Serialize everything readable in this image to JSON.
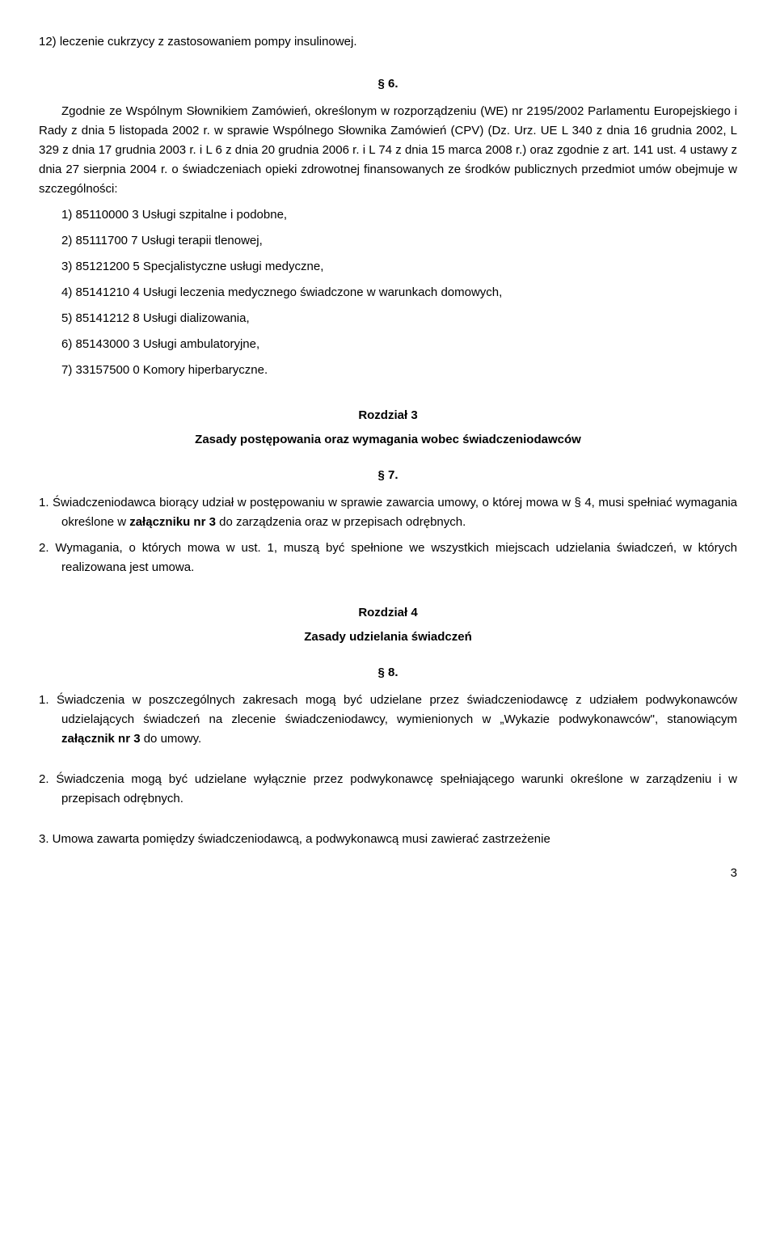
{
  "document": {
    "bg_color": "#ffffff",
    "text_color": "#000000",
    "font_family": "Arial",
    "base_fontsize": 15
  },
  "first_line": "12) leczenie cukrzycy z zastosowaniem pompy insulinowej.",
  "section6": {
    "num": "§ 6.",
    "body_intro": "Zgodnie ze Wspólnym Słownikiem Zamówień, określonym w rozporządzeniu (WE) nr 2195/2002 Parlamentu Europejskiego i Rady z dnia 5 listopada 2002 r. w sprawie Wspólnego Słownika Zamówień (CPV) (Dz. Urz. UE L 340 z dnia 16 grudnia 2002, L 329 z dnia 17 grudnia 2003 r. i L 6 z dnia 20 grudnia 2006 r. i L 74 z dnia 15 marca 2008 r.) oraz zgodnie z art. 141 ust. 4 ustawy z dnia 27 sierpnia 2004 r. o świadczeniach opieki zdrowotnej finansowanych ze środków publicznych przedmiot umów obejmuje w szczególności:",
    "items": [
      "1)  85110000 3 Usługi szpitalne i podobne,",
      "2)  85111700 7 Usługi terapii tlenowej,",
      "3)  85121200 5 Specjalistyczne usługi medyczne,",
      "4)  85141210 4 Usługi leczenia medycznego świadczone w warunkach domowych,",
      "5)  85141212 8 Usługi dializowania,",
      "6)  85143000 3 Usługi ambulatoryjne,",
      "7)  33157500 0 Komory hiperbaryczne."
    ]
  },
  "chapter3": {
    "title": "Rozdział 3",
    "subtitle": "Zasady postępowania oraz wymagania wobec świadczeniodawców"
  },
  "section7": {
    "num": "§ 7.",
    "item1_pre": "1.  Świadczeniodawca biorący udział w postępowaniu w sprawie zawarcia umowy, o której mowa w § 4, musi spełniać wymagania określone w ",
    "item1_bold": "załączniku nr 3",
    "item1_post": " do zarządzenia oraz w przepisach odrębnych.",
    "item2": "2.  Wymagania, o których mowa w ust. 1, muszą być spełnione we wszystkich miejscach udzielania świadczeń, w których realizowana jest umowa."
  },
  "chapter4": {
    "title": "Rozdział 4",
    "subtitle": "Zasady udzielania świadczeń"
  },
  "section8": {
    "num": "§ 8.",
    "item1_pre": "1.  Świadczenia w poszczególnych zakresach mogą być udzielane przez świadczeniodawcę z udziałem podwykonawców udzielających świadczeń na zlecenie świadczeniodawcy, wymienionych w „Wykazie podwykonawców\", stanowiącym ",
    "item1_bold": "załącznik nr 3",
    "item1_post": " do umowy.",
    "item2": "2.  Świadczenia mogą być udzielane wyłącznie przez podwykonawcę spełniającego warunki określone w zarządzeniu i w przepisach odrębnych.",
    "item3": "3.  Umowa zawarta pomiędzy świadczeniodawcą, a podwykonawcą musi zawierać zastrzeżenie"
  },
  "page_number": "3"
}
